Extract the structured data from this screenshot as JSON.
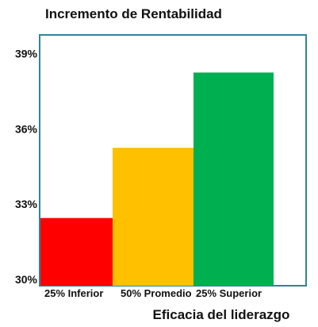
{
  "chart_data": {
    "type": "bar",
    "title": "Incremento de Rentabilidad",
    "xlabel": "Eficacia del liderazgo",
    "ylabel": "",
    "categories": [
      "25% Inferior",
      "50% Promedio",
      "25% Superior"
    ],
    "values": [
      32.7,
      35.5,
      38.5
    ],
    "colors": [
      "#ff0000",
      "#ffc000",
      "#00b050"
    ],
    "ylim": [
      30,
      40
    ],
    "yticks": [
      30,
      33,
      36,
      39
    ],
    "ytick_labels": [
      "30%",
      "33%",
      "36%",
      "39%"
    ],
    "grid": false,
    "legend": "none",
    "frame_color": "#31849b"
  }
}
